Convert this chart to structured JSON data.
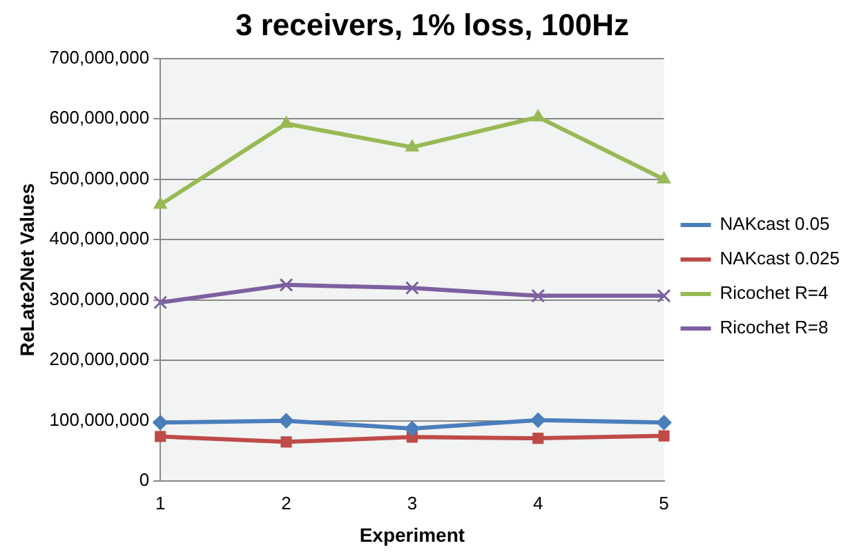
{
  "chart_data": {
    "type": "line",
    "title": "3 receivers, 1% loss, 100Hz",
    "xlabel": "Experiment",
    "ylabel": "ReLate2Net Values",
    "categories": [
      "1",
      "2",
      "3",
      "4",
      "5"
    ],
    "series": [
      {
        "name": "NAKcast 0.05",
        "color": "#4a7ebb",
        "marker": "diamond",
        "values": [
          97000000,
          100000000,
          87000000,
          101000000,
          97000000
        ]
      },
      {
        "name": "NAKcast 0.025",
        "color": "#be4b48",
        "marker": "square",
        "values": [
          74000000,
          65000000,
          73000000,
          71000000,
          75000000
        ]
      },
      {
        "name": "Ricochet R=4",
        "color": "#98b954",
        "marker": "triangle",
        "values": [
          458000000,
          592000000,
          553000000,
          603000000,
          500000000
        ]
      },
      {
        "name": "Ricochet R=8",
        "color": "#7d60a0",
        "marker": "cross",
        "values": [
          296000000,
          325000000,
          320000000,
          307000000,
          307000000
        ]
      }
    ],
    "ylim": [
      0,
      700000000
    ],
    "yticks": [
      0,
      {
        "value": 100000000,
        "label": "100,000,000"
      },
      {
        "value": 200000000,
        "label": "200,000,000"
      },
      {
        "value": 300000000,
        "label": "300,000,000"
      },
      {
        "value": 400000000,
        "label": "400,000,000"
      },
      {
        "value": 500000000,
        "label": "500,000,000"
      },
      {
        "value": 600000000,
        "label": "600,000,000"
      },
      {
        "value": 700000000,
        "label": "700,000,000"
      }
    ],
    "grid": "y",
    "legend": "right"
  }
}
